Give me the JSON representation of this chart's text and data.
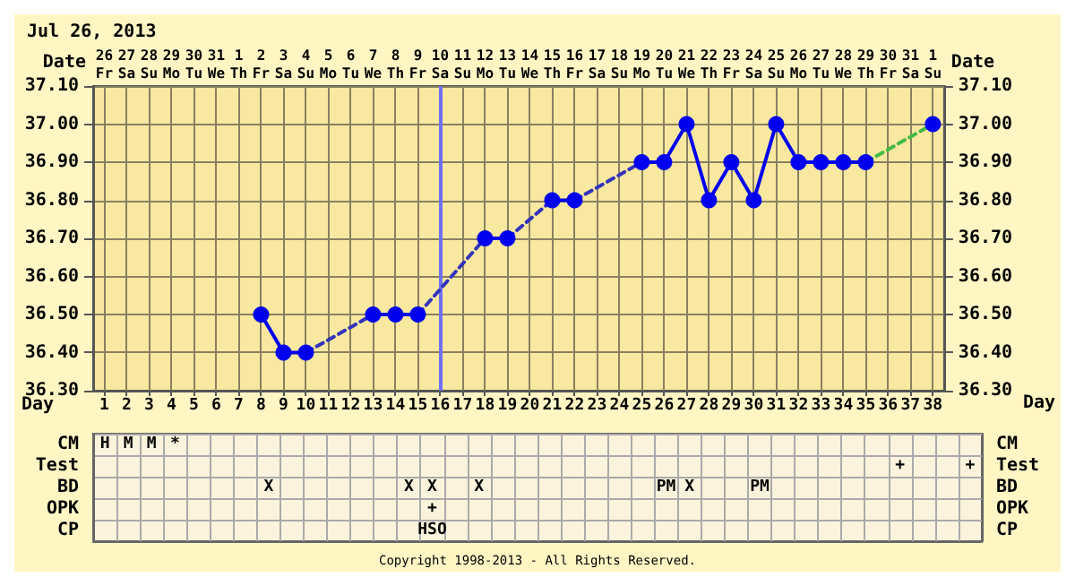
{
  "chart_data": [
    {
      "type": "line",
      "title": "Jul 26, 2013",
      "xlabel": "Day",
      "x2label": "Date",
      "series": [
        {
          "color": "#0000ee",
          "marker": "circle",
          "line_style": "solid",
          "x": [
            8,
            9,
            10,
            null,
            13,
            14,
            15,
            null,
            18,
            19,
            null,
            21,
            22,
            null,
            25,
            26,
            27,
            28,
            29,
            30,
            31,
            32,
            33,
            34,
            35,
            null,
            38
          ],
          "values": [
            36.5,
            36.4,
            36.4,
            null,
            36.5,
            36.5,
            36.5,
            null,
            36.7,
            36.7,
            null,
            36.8,
            36.8,
            null,
            36.9,
            36.9,
            37.0,
            36.8,
            36.9,
            36.8,
            37.0,
            36.9,
            36.9,
            36.9,
            36.9,
            null,
            37.0
          ]
        },
        {
          "color": "#3333bb",
          "marker": "none",
          "line_style": "dashed",
          "x": [
            10,
            13,
            null,
            15,
            18,
            null,
            19,
            21,
            null,
            22,
            25
          ],
          "values": [
            36.4,
            36.5,
            null,
            36.5,
            36.7,
            null,
            36.7,
            36.8,
            null,
            36.8,
            36.9
          ]
        },
        {
          "color": "#44bb44",
          "marker": "none",
          "line_style": "dashed",
          "x": [
            35,
            38
          ],
          "values": [
            36.9,
            37.0
          ]
        }
      ],
      "xlim": [
        0.5,
        38.5
      ],
      "xticks": [
        1,
        2,
        3,
        4,
        5,
        6,
        7,
        8,
        9,
        10,
        11,
        12,
        13,
        14,
        15,
        16,
        17,
        18,
        19,
        20,
        21,
        22,
        23,
        24,
        25,
        26,
        27,
        28,
        29,
        30,
        31,
        32,
        33,
        34,
        35,
        36,
        37,
        38
      ],
      "ylim": [
        36.3,
        37.1
      ],
      "yticks": [
        {
          "value": 36.3,
          "label": "36.30"
        },
        {
          "value": 36.4,
          "label": "36.40"
        },
        {
          "value": 36.5,
          "label": "36.50"
        },
        {
          "value": 36.6,
          "label": "36.60"
        },
        {
          "value": 36.7,
          "label": "36.70"
        },
        {
          "value": 36.8,
          "label": "36.80"
        },
        {
          "value": 36.9,
          "label": "36.90"
        },
        {
          "value": 37.0,
          "label": "37.00"
        },
        {
          "value": 37.1,
          "label": "37.10"
        }
      ],
      "y2lim": [
        36.3,
        37.1
      ],
      "y2ticks": [
        {
          "value": 36.3,
          "label": "36.30"
        },
        {
          "value": 36.4,
          "label": "36.40"
        },
        {
          "value": 36.5,
          "label": "36.50"
        },
        {
          "value": 36.6,
          "label": "36.60"
        },
        {
          "value": 36.7,
          "label": "36.70"
        },
        {
          "value": 36.8,
          "label": "36.80"
        },
        {
          "value": 36.9,
          "label": "36.90"
        },
        {
          "value": 37.0,
          "label": "37.00"
        },
        {
          "value": 37.1,
          "label": "37.10"
        }
      ],
      "grid": true,
      "ref_lines": [
        {
          "axis": "x",
          "value": 16,
          "color": "#7070ff"
        }
      ],
      "annotations": [
        "26 Fr",
        "27 Sa",
        "28 Su",
        "29 Mo",
        "30 Tu",
        "31 We",
        "1 Th",
        "2 Fr",
        "3 Sa",
        "4 Su",
        "5 Mo",
        "6 Tu",
        "7 We",
        "8 Th",
        "9 Fr",
        "10 Sa",
        "11 Su",
        "12 Mo",
        "13 Tu",
        "14 We",
        "15 Th",
        "16 Fr",
        "17 Sa",
        "18 Su",
        "19 Mo",
        "20 Tu",
        "21 We",
        "22 Th",
        "23 Fr",
        "24 Sa",
        "25 Su",
        "26 Mo",
        "27 Tu",
        "28 We",
        "29 Th",
        "30 Fr",
        "31 Sa",
        "1 Su"
      ]
    },
    {
      "type": "heatmap",
      "categories": [
        null,
        null,
        null,
        null,
        null,
        null,
        null,
        null,
        null,
        null,
        null,
        null,
        null,
        null,
        null,
        null,
        null,
        null,
        null,
        null,
        null,
        null,
        null,
        null,
        null,
        null,
        null,
        null,
        null,
        null,
        null,
        null,
        null,
        null,
        null,
        null,
        null,
        null
      ],
      "y_categories": [
        "CM",
        "Test",
        "BD",
        "OPK",
        "CP"
      ],
      "y2_categories": [
        "CM",
        "Test",
        "BD",
        "OPK",
        "CP"
      ],
      "tick_labels": "y",
      "grid": true,
      "cells": [
        [
          null,
          null,
          null,
          null,
          null,
          null,
          null,
          null,
          null,
          null,
          null,
          null,
          null,
          null,
          null,
          null,
          null,
          null,
          null,
          null,
          null,
          null,
          null,
          null,
          null,
          null,
          null,
          null,
          null,
          null,
          null,
          null,
          null,
          null,
          null,
          null,
          null,
          null
        ],
        [
          null,
          null,
          null,
          null,
          null,
          null,
          null,
          null,
          null,
          null,
          null,
          null,
          null,
          null,
          null,
          null,
          null,
          null,
          null,
          null,
          null,
          null,
          null,
          null,
          null,
          null,
          null,
          null,
          null,
          null,
          null,
          null,
          null,
          null,
          null,
          null,
          null,
          null
        ],
        [
          null,
          null,
          null,
          null,
          null,
          null,
          null,
          null,
          null,
          null,
          null,
          null,
          null,
          null,
          null,
          null,
          null,
          null,
          null,
          null,
          null,
          null,
          null,
          null,
          null,
          null,
          null,
          null,
          null,
          null,
          null,
          null,
          null,
          null,
          null,
          null,
          null,
          null
        ],
        [
          null,
          null,
          null,
          null,
          null,
          null,
          null,
          null,
          null,
          null,
          null,
          null,
          null,
          null,
          null,
          null,
          null,
          null,
          null,
          null,
          null,
          null,
          null,
          null,
          null,
          null,
          null,
          null,
          null,
          null,
          null,
          null,
          null,
          null,
          null,
          null,
          null,
          null
        ],
        [
          null,
          null,
          null,
          null,
          null,
          null,
          null,
          null,
          null,
          null,
          null,
          null,
          null,
          null,
          null,
          null,
          null,
          null,
          null,
          null,
          null,
          null,
          null,
          null,
          null,
          null,
          null,
          null,
          null,
          null,
          null,
          null,
          null,
          null,
          null,
          null,
          null,
          null
        ]
      ],
      "cell_labels": [
        [
          "H",
          "M",
          "M",
          "*",
          null,
          null,
          null,
          null,
          null,
          null,
          null,
          null,
          null,
          null,
          null,
          null,
          null,
          null,
          null,
          null,
          null,
          null,
          null,
          null,
          null,
          null,
          null,
          null,
          null,
          null,
          null,
          null,
          null,
          null,
          null,
          null,
          null,
          null
        ],
        [
          null,
          null,
          null,
          null,
          null,
          null,
          null,
          null,
          null,
          null,
          null,
          null,
          null,
          null,
          null,
          null,
          null,
          null,
          null,
          null,
          null,
          null,
          null,
          null,
          null,
          null,
          null,
          null,
          null,
          null,
          null,
          null,
          null,
          null,
          "+",
          null,
          null,
          "+"
        ],
        [
          null,
          null,
          null,
          null,
          null,
          null,
          null,
          "X",
          null,
          null,
          null,
          null,
          null,
          "X",
          "X",
          null,
          "X",
          null,
          null,
          null,
          null,
          null,
          null,
          null,
          "PM",
          "X",
          null,
          null,
          "PM",
          null,
          null,
          null,
          null,
          null,
          null,
          null,
          null,
          null
        ],
        [
          null,
          null,
          null,
          null,
          null,
          null,
          null,
          null,
          null,
          null,
          null,
          null,
          null,
          null,
          "+",
          null,
          null,
          null,
          null,
          null,
          null,
          null,
          null,
          null,
          null,
          null,
          null,
          null,
          null,
          null,
          null,
          null,
          null,
          null,
          null,
          null,
          null,
          null
        ],
        [
          null,
          null,
          null,
          null,
          null,
          null,
          null,
          null,
          null,
          null,
          null,
          null,
          null,
          null,
          "HSO",
          null,
          null,
          null,
          null,
          null,
          null,
          null,
          null,
          null,
          null,
          null,
          null,
          null,
          null,
          null,
          null,
          null,
          null,
          null,
          null,
          null,
          null,
          null
        ]
      ],
      "annotations": [
        "Copyright 1998-2013 - All Rights Reserved."
      ]
    }
  ]
}
